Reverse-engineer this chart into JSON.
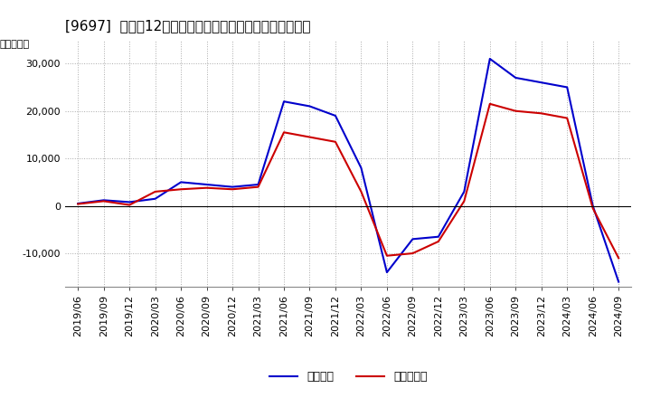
{
  "title": "[9697]  利益だ12か月移動合計の対前年同期増減額の推移",
  "ylabel": "（百万円）",
  "dates": [
    "2019/06",
    "2019/09",
    "2019/12",
    "2020/03",
    "2020/06",
    "2020/09",
    "2020/12",
    "2021/03",
    "2021/06",
    "2021/09",
    "2021/12",
    "2022/03",
    "2022/06",
    "2022/09",
    "2022/12",
    "2023/03",
    "2023/06",
    "2023/09",
    "2023/12",
    "2024/03",
    "2024/06",
    "2024/09"
  ],
  "keijo_rieki": [
    500,
    1200,
    800,
    1500,
    5000,
    4500,
    4000,
    4500,
    22000,
    21000,
    19000,
    8000,
    -14000,
    -7000,
    -6500,
    3000,
    31000,
    27000,
    26000,
    25000,
    0,
    -16000
  ],
  "touki_junrieki": [
    400,
    1000,
    200,
    3000,
    3500,
    3800,
    3500,
    4000,
    15500,
    14500,
    13500,
    3000,
    -10500,
    -10000,
    -7500,
    1000,
    21500,
    20000,
    19500,
    18500,
    -500,
    -11000
  ],
  "keijo_color": "#0000cc",
  "touki_color": "#cc0000",
  "ylim": [
    -17000,
    35000
  ],
  "yticks": [
    -10000,
    0,
    10000,
    20000,
    30000
  ],
  "bg_color": "#ffffff",
  "plot_bg_color": "#ffffff",
  "grid_color": "#aaaaaa",
  "line_width": 1.5,
  "legend_keijo": "経常利益",
  "legend_touki": "当期純利益",
  "title_fontsize": 11,
  "axis_fontsize": 8,
  "legend_fontsize": 9
}
